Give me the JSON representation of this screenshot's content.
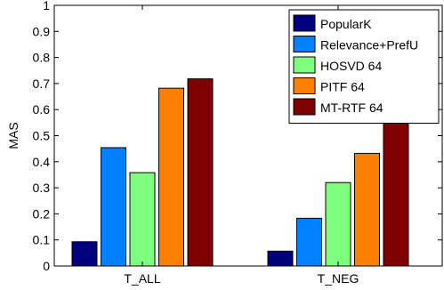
{
  "chart_data": {
    "type": "bar",
    "title": "",
    "xlabel": "",
    "ylabel": "MAS",
    "ylim": [
      0,
      1
    ],
    "yticks": [
      "0",
      "0.1",
      "0.2",
      "0.3",
      "0.4",
      "0.5",
      "0.6",
      "0.7",
      "0.8",
      "0.9",
      "1"
    ],
    "categories": [
      "T_ALL",
      "T_NEG"
    ],
    "series": [
      {
        "name": "PopularK",
        "color": "#00007f",
        "values": [
          0.093,
          0.057
        ]
      },
      {
        "name": "Relevance+PrefU",
        "color": "#007fff",
        "values": [
          0.454,
          0.183
        ]
      },
      {
        "name": "HOSVD 64",
        "color": "#7fff7f",
        "values": [
          0.358,
          0.32
        ]
      },
      {
        "name": "PITF 64",
        "color": "#ff7f00",
        "values": [
          0.682,
          0.432
        ]
      },
      {
        "name": "MT-RTF 64",
        "color": "#7f0000",
        "values": [
          0.718,
          0.555
        ]
      }
    ],
    "legend_position": "top-right",
    "grid": false
  }
}
